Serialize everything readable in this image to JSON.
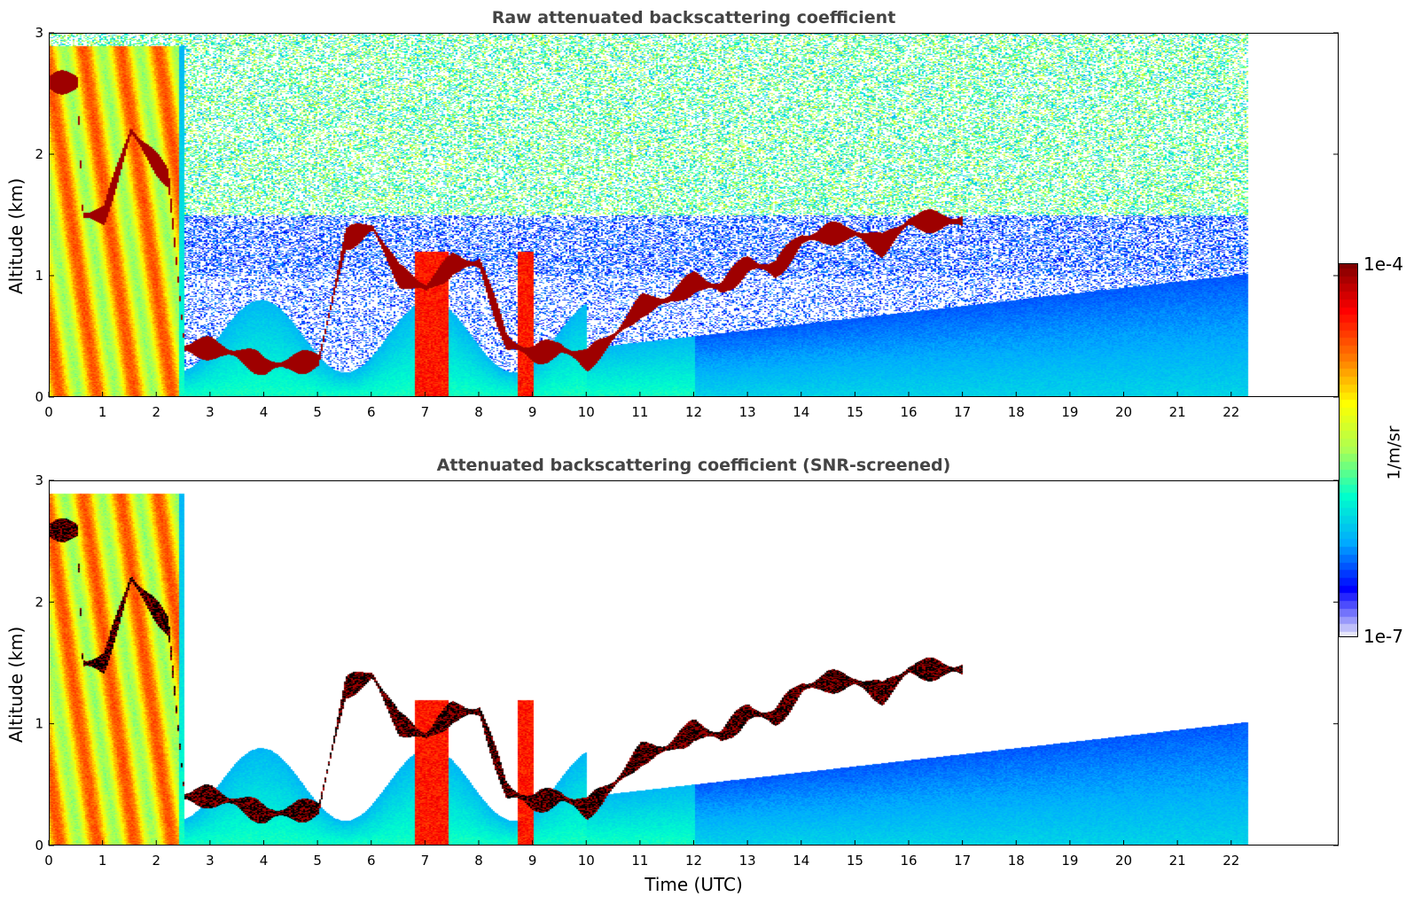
{
  "colors": {
    "colormap": [
      "#e6e6fa",
      "#0000ff",
      "#00aaff",
      "#00ffcc",
      "#aaff55",
      "#ffff00",
      "#ff7700",
      "#ff0000",
      "#800000"
    ],
    "mask_black": "#000000"
  },
  "colorbar": {
    "max_label": "1e-4",
    "min_label": "1e-7",
    "unit_label": "1/m/sr",
    "scale": "log",
    "range": [
      1e-07,
      0.0001
    ]
  },
  "chart_data": [
    {
      "type": "heatmap",
      "title": "Raw attenuated backscattering coefficient",
      "xlabel": "",
      "ylabel": "Altitude (km)",
      "xlim": [
        0,
        24
      ],
      "ylim": [
        0,
        3
      ],
      "x_ticks": [
        0,
        1,
        2,
        3,
        4,
        5,
        6,
        7,
        8,
        9,
        10,
        11,
        12,
        13,
        14,
        15,
        16,
        17,
        18,
        19,
        20,
        21,
        22
      ],
      "y_ticks": [
        0,
        1,
        2,
        3
      ],
      "data_end_hour": 22.3,
      "screened": false,
      "cloud_layer": [
        {
          "t": 0.0,
          "alt": 2.6
        },
        {
          "t": 0.5,
          "alt": 2.6
        },
        {
          "t": 0.6,
          "alt": 1.5
        },
        {
          "t": 1.0,
          "alt": 1.5
        },
        {
          "t": 1.5,
          "alt": 2.2
        },
        {
          "t": 2.2,
          "alt": 1.8
        },
        {
          "t": 2.5,
          "alt": 0.4
        },
        {
          "t": 3.0,
          "alt": 0.4
        },
        {
          "t": 3.5,
          "alt": 0.35
        },
        {
          "t": 4.0,
          "alt": 0.25
        },
        {
          "t": 5.0,
          "alt": 0.3
        },
        {
          "t": 5.5,
          "alt": 1.3
        },
        {
          "t": 6.0,
          "alt": 1.4
        },
        {
          "t": 6.5,
          "alt": 1.0
        },
        {
          "t": 7.0,
          "alt": 0.9
        },
        {
          "t": 7.5,
          "alt": 1.1
        },
        {
          "t": 8.0,
          "alt": 1.1
        },
        {
          "t": 8.5,
          "alt": 0.45
        },
        {
          "t": 9.0,
          "alt": 0.35
        },
        {
          "t": 9.5,
          "alt": 0.4
        },
        {
          "t": 10.0,
          "alt": 0.3
        },
        {
          "t": 10.5,
          "alt": 0.5
        },
        {
          "t": 11.0,
          "alt": 0.75
        },
        {
          "t": 11.5,
          "alt": 0.8
        },
        {
          "t": 12.0,
          "alt": 0.95
        },
        {
          "t": 12.5,
          "alt": 0.9
        },
        {
          "t": 13.0,
          "alt": 1.1
        },
        {
          "t": 13.5,
          "alt": 1.05
        },
        {
          "t": 14.0,
          "alt": 1.3
        },
        {
          "t": 14.5,
          "alt": 1.35
        },
        {
          "t": 15.0,
          "alt": 1.35
        },
        {
          "t": 15.5,
          "alt": 1.25
        },
        {
          "t": 16.0,
          "alt": 1.45
        },
        {
          "t": 17.0,
          "alt": 1.45
        }
      ]
    },
    {
      "type": "heatmap",
      "title": "Attenuated backscattering coefficient (SNR-screened)",
      "xlabel": "Time (UTC)",
      "ylabel": "Altitude (km)",
      "xlim": [
        0,
        24
      ],
      "ylim": [
        0,
        3
      ],
      "x_ticks": [
        0,
        1,
        2,
        3,
        4,
        5,
        6,
        7,
        8,
        9,
        10,
        11,
        12,
        13,
        14,
        15,
        16,
        17,
        18,
        19,
        20,
        21,
        22
      ],
      "y_ticks": [
        0,
        1,
        2,
        3
      ],
      "data_end_hour": 22.3,
      "screened": true
    }
  ]
}
